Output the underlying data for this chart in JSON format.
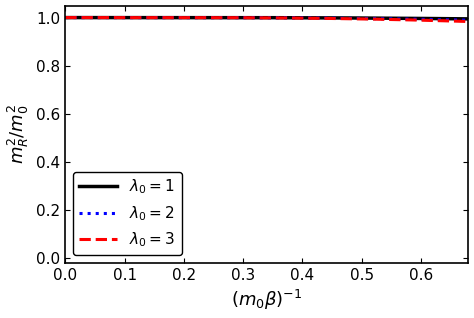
{
  "title": "",
  "xlabel": "$(m_0\\beta)^{-1}$",
  "ylabel": "$m_R^2/m_0^2$",
  "xlim": [
    0.0,
    0.68
  ],
  "ylim": [
    -0.02,
    1.05
  ],
  "xticks": [
    0.0,
    0.1,
    0.2,
    0.3,
    0.4,
    0.5,
    0.6
  ],
  "yticks": [
    0.0,
    0.2,
    0.4,
    0.6,
    0.8,
    1.0
  ],
  "lambda_values": [
    1,
    2,
    3
  ],
  "colors": [
    "black",
    "blue",
    "red"
  ],
  "linestyles": [
    "-",
    ":",
    "--"
  ],
  "linewidths": [
    2.5,
    2.2,
    2.2
  ],
  "legend_labels": [
    "$\\lambda_0 = 1$",
    "$\\lambda_0 = 2$",
    "$\\lambda_0 = 3$"
  ],
  "legend_loc": "lower left",
  "background_color": "#f0f0f0",
  "n_points": 500
}
